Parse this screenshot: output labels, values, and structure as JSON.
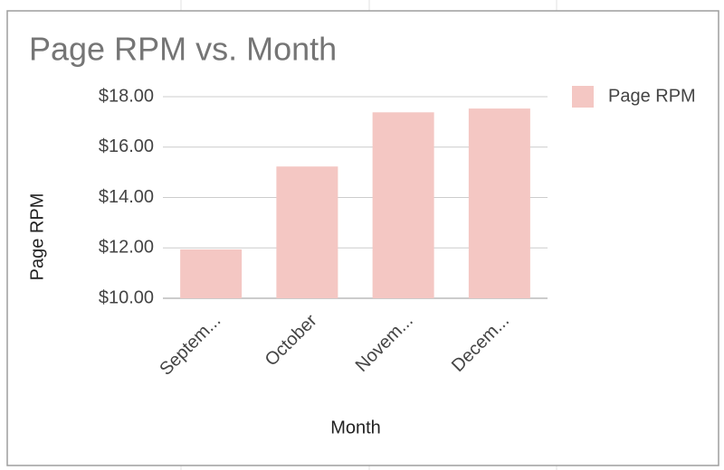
{
  "chart_data": {
    "type": "bar",
    "title": "Page RPM vs. Month",
    "x_label": "Month",
    "y_label": "Page RPM",
    "categories": [
      "Septem...",
      "October",
      "Novem...",
      "Decem..."
    ],
    "series": [
      {
        "name": "Page RPM",
        "color": "#f4c7c3",
        "values": [
          11.94,
          15.23,
          17.38,
          17.53
        ]
      }
    ],
    "ylim": [
      10,
      18
    ],
    "yticks": [
      {
        "value": 10,
        "label": "$10.00"
      },
      {
        "value": 12,
        "label": "$12.00"
      },
      {
        "value": 14,
        "label": "$14.00"
      },
      {
        "value": 16,
        "label": "$16.00"
      },
      {
        "value": 18,
        "label": "$18.00"
      }
    ],
    "grid": true,
    "legend": "right"
  }
}
